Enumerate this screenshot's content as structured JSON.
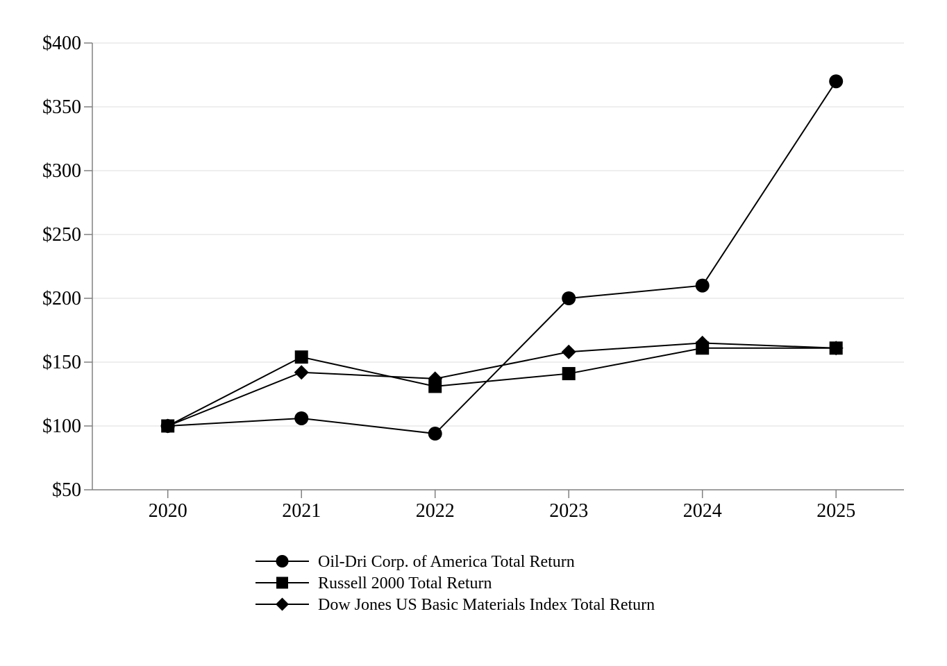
{
  "chart_data": {
    "type": "line",
    "title": "",
    "categories": [
      "2020",
      "2021",
      "2022",
      "2023",
      "2024",
      "2025"
    ],
    "series": [
      {
        "name": "Oil-Dri Corp. of America Total Return",
        "marker": "circle",
        "z": 1,
        "values": [
          100,
          106,
          94,
          200,
          210,
          370
        ]
      },
      {
        "name": "Russell 2000 Total Return",
        "marker": "square",
        "z": 3,
        "values": [
          100,
          154,
          131,
          141,
          161,
          161
        ]
      },
      {
        "name": "Dow Jones US Basic Materials Index Total Return",
        "marker": "diamond",
        "z": 2,
        "values": [
          100,
          142,
          137,
          158,
          165,
          161
        ]
      }
    ],
    "x_axis": {
      "label": "",
      "tick_labels": [
        "2020",
        "2021",
        "2022",
        "2023",
        "2024",
        "2025"
      ]
    },
    "y_axis": {
      "label": "",
      "min": 50,
      "max": 400,
      "step": 50,
      "prefix": "$",
      "tick_labels": [
        "$50",
        "$100",
        "$150",
        "$200",
        "$250",
        "$300",
        "$350",
        "$400"
      ]
    },
    "ylim": [
      50,
      400
    ],
    "legend": {
      "position": "bottom-left",
      "entries": [
        "Oil-Dri Corp. of America Total Return",
        "Russell 2000 Total Return",
        "Dow Jones US Basic Materials Index Total Return"
      ]
    },
    "grid": "horizontal",
    "colors": {
      "series": "#000000",
      "axis": "#808080",
      "gridline": "#e8e8e8",
      "background": "#ffffff",
      "text": "#000000"
    }
  }
}
